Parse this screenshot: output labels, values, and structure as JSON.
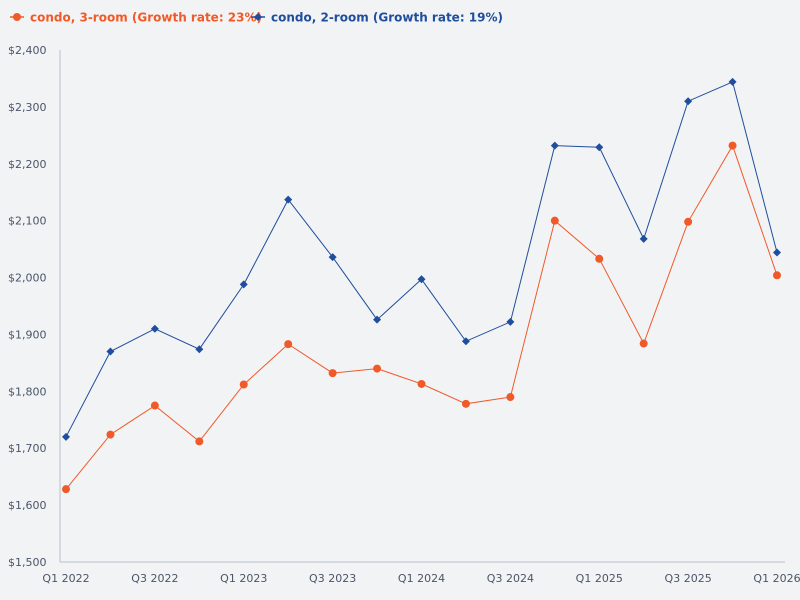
{
  "chart_data": {
    "type": "line",
    "title": "",
    "xlabel": "",
    "ylabel": "",
    "ylim": [
      1500,
      2400
    ],
    "yticks": [
      1500,
      1600,
      1700,
      1800,
      1900,
      2000,
      2100,
      2200,
      2300,
      2400
    ],
    "ytick_labels": [
      "$1,500",
      "$1,600",
      "$1,700",
      "$1,800",
      "$1,900",
      "$2,000",
      "$2,100",
      "$2,200",
      "$2,300",
      "$2,400"
    ],
    "categories": [
      "Q1 2022",
      "Q2 2022",
      "Q3 2022",
      "Q4 2022",
      "Q1 2023",
      "Q2 2023",
      "Q3 2023",
      "Q4 2023",
      "Q1 2024",
      "Q2 2024",
      "Q3 2024",
      "Q4 2024",
      "Q1 2025",
      "Q2 2025",
      "Q3 2025",
      "Q4 2025",
      "Q1 2026"
    ],
    "xtick_labels": [
      "Q1 2022",
      "Q3 2022",
      "Q1 2023",
      "Q3 2023",
      "Q1 2024",
      "Q3 2024",
      "Q1 2025",
      "Q3 2025",
      "Q1 2026"
    ],
    "grid": false,
    "legend_position": "top-left",
    "series": [
      {
        "name": "condo, 3-room (Growth rate: 23%)",
        "color": "#f05a28",
        "marker": "circle",
        "values": [
          1628,
          1724,
          1775,
          1712,
          1812,
          1883,
          1832,
          1840,
          1813,
          1778,
          1790,
          2100,
          2033,
          1884,
          2098,
          2232,
          2004
        ]
      },
      {
        "name": "condo, 2-room (Growth rate: 19%)",
        "color": "#1f4e9c",
        "marker": "diamond",
        "values": [
          1720,
          1870,
          1910,
          1874,
          1988,
          2137,
          2036,
          1926,
          1997,
          1888,
          1922,
          2232,
          2229,
          2068,
          2310,
          2344,
          2044
        ]
      }
    ]
  },
  "colors": {
    "axis": "#b8c0cc",
    "background": "#f2f3f5"
  }
}
